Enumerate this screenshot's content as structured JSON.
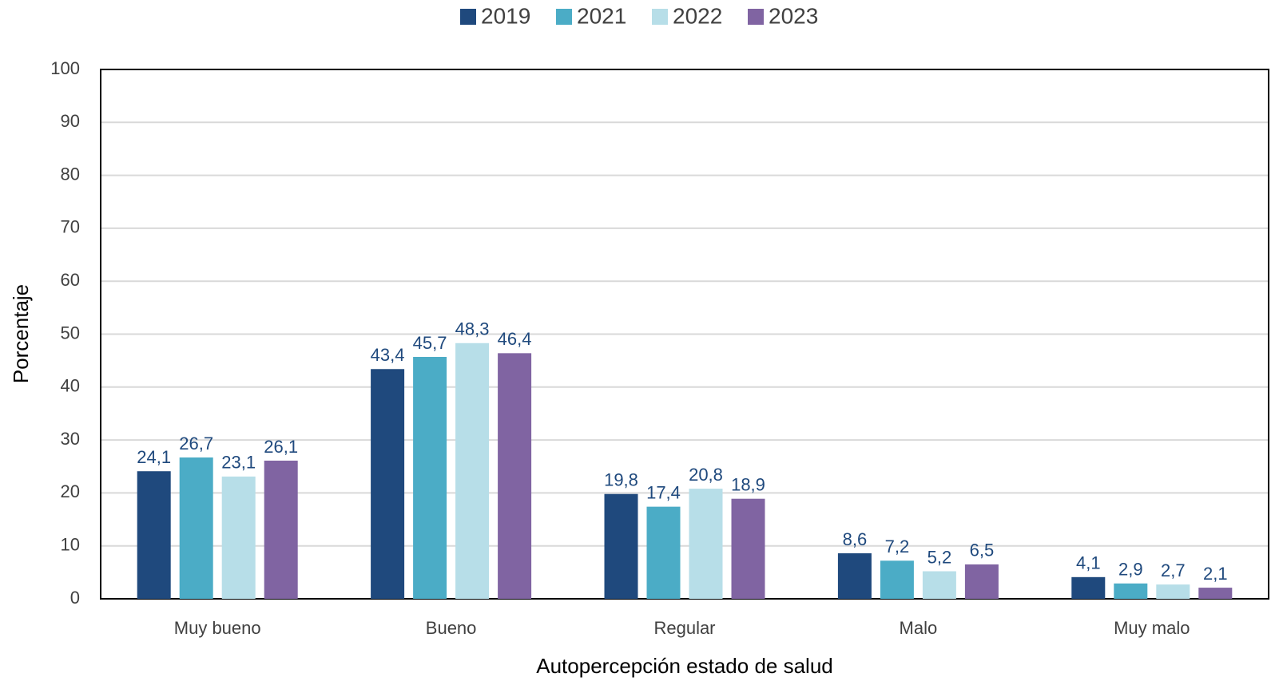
{
  "chart_data": {
    "type": "bar",
    "x_label": "Autopercepción estado de salud",
    "y_label": "Porcentaje",
    "categories": [
      "Muy bueno",
      "Bueno",
      "Regular",
      "Malo",
      "Muy malo"
    ],
    "series": [
      {
        "name": "2019",
        "color": "#1f497d",
        "values": [
          24.1,
          43.4,
          19.8,
          8.6,
          4.1
        ],
        "value_labels": [
          "24,1",
          "43,4",
          "19,8",
          "8,6",
          "4,1"
        ]
      },
      {
        "name": "2021",
        "color": "#4bacc6",
        "values": [
          26.7,
          45.7,
          17.4,
          7.2,
          2.9
        ],
        "value_labels": [
          "26,7",
          "45,7",
          "17,4",
          "7,2",
          "2,9"
        ]
      },
      {
        "name": "2022",
        "color": "#b7dee8",
        "values": [
          23.1,
          48.3,
          20.8,
          5.2,
          2.7
        ],
        "value_labels": [
          "23,1",
          "48,3",
          "20,8",
          "5,2",
          "2,7"
        ]
      },
      {
        "name": "2023",
        "color": "#8064a2",
        "values": [
          26.1,
          46.4,
          18.9,
          6.5,
          2.1
        ],
        "value_labels": [
          "26,1",
          "46,4",
          "18,9",
          "6,5",
          "2,1"
        ]
      }
    ],
    "ylim": [
      0,
      100
    ],
    "yticks": [
      0,
      10,
      20,
      30,
      40,
      50,
      60,
      70,
      80,
      90,
      100
    ],
    "grid": true,
    "legend": "top"
  }
}
